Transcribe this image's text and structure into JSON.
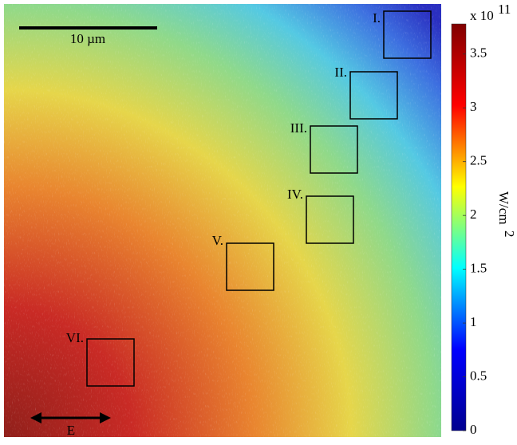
{
  "image": {
    "scale_bar": "10 µm",
    "polarization": "E",
    "regions": [
      "I.",
      "II.",
      "III.",
      "IV.",
      "V.",
      "VI."
    ]
  },
  "colorbar": {
    "multiplier": "x 10",
    "multiplier_exponent": "11",
    "unit": "W/cm",
    "unit_exponent": "2",
    "lim": [
      0,
      3.78
    ],
    "ticks": [
      0,
      0.5,
      1,
      1.5,
      2,
      2.5,
      3,
      3.5
    ],
    "colors": [
      "#00008f",
      "#0000ff",
      "#00ffff",
      "#ffff00",
      "#ff0000",
      "#800000"
    ]
  }
}
